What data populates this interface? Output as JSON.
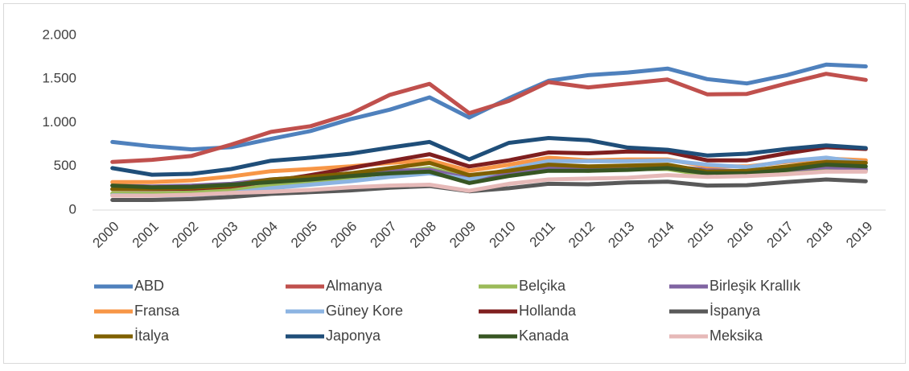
{
  "chart_data": {
    "type": "line",
    "categories": [
      "2000",
      "2001",
      "2002",
      "2003",
      "2004",
      "2005",
      "2006",
      "2007",
      "2008",
      "2009",
      "2010",
      "2011",
      "2012",
      "2013",
      "2014",
      "2015",
      "2016",
      "2017",
      "2018",
      "2019"
    ],
    "ylim": [
      0,
      2000
    ],
    "yticks": [
      0,
      500,
      {
        "value": 1000,
        "label": "1.000"
      },
      {
        "value": 1500,
        "label": "1.500"
      },
      {
        "value": 2000,
        "label": "2.000"
      }
    ],
    "grid": false,
    "series": [
      {
        "name": "ABD",
        "color": "#4f81bd",
        "values": [
          780,
          730,
          695,
          720,
          815,
          905,
          1040,
          1150,
          1290,
          1060,
          1280,
          1480,
          1545,
          1575,
          1620,
          1500,
          1450,
          1545,
          1665,
          1645
        ]
      },
      {
        "name": "Almanya",
        "color": "#c0504d",
        "values": [
          550,
          575,
          620,
          750,
          895,
          960,
          1100,
          1320,
          1445,
          1110,
          1250,
          1465,
          1405,
          1450,
          1495,
          1325,
          1330,
          1450,
          1560,
          1490
        ]
      },
      {
        "name": "Belçika",
        "color": "#9bbb59",
        "values": [
          190,
          190,
          200,
          230,
          280,
          320,
          370,
          430,
          480,
          370,
          410,
          470,
          450,
          470,
          470,
          400,
          400,
          430,
          470,
          450
        ]
      },
      {
        "name": "Birleşik Krallık",
        "color": "#8064a2",
        "values": [
          280,
          270,
          280,
          300,
          350,
          380,
          420,
          450,
          460,
          360,
          420,
          480,
          480,
          480,
          500,
          460,
          440,
          460,
          490,
          470
        ]
      },
      {
        "name": "Fransa",
        "color": "#f79646",
        "values": [
          320,
          320,
          340,
          385,
          445,
          470,
          500,
          540,
          570,
          450,
          520,
          600,
          570,
          580,
          580,
          500,
          500,
          550,
          590,
          570
        ]
      },
      {
        "name": "Güney Kore",
        "color": "#8cb4e2",
        "values": [
          170,
          165,
          170,
          195,
          250,
          290,
          330,
          380,
          420,
          350,
          470,
          560,
          560,
          560,
          570,
          520,
          490,
          560,
          600,
          540
        ]
      },
      {
        "name": "Hollanda",
        "color": "#7f1f1f",
        "values": [
          240,
          240,
          245,
          270,
          330,
          400,
          480,
          560,
          640,
          500,
          570,
          660,
          650,
          670,
          665,
          570,
          570,
          650,
          720,
          700
        ]
      },
      {
        "name": "İspanya",
        "color": "#595959",
        "values": [
          115,
          115,
          125,
          150,
          185,
          205,
          225,
          255,
          275,
          215,
          250,
          300,
          295,
          315,
          325,
          280,
          285,
          320,
          350,
          330
        ]
      },
      {
        "name": "İtalya",
        "color": "#7f6000",
        "values": [
          240,
          245,
          255,
          280,
          350,
          380,
          420,
          480,
          540,
          400,
          450,
          520,
          500,
          510,
          520,
          440,
          450,
          500,
          550,
          540
        ]
      },
      {
        "name": "Japonya",
        "color": "#1f4e79",
        "values": [
          480,
          405,
          415,
          470,
          565,
          600,
          645,
          715,
          780,
          580,
          770,
          825,
          800,
          715,
          690,
          625,
          645,
          700,
          740,
          710
        ]
      },
      {
        "name": "Kanada",
        "color": "#375623",
        "values": [
          280,
          260,
          265,
          290,
          320,
          350,
          390,
          420,
          440,
          310,
          390,
          450,
          450,
          460,
          480,
          420,
          420,
          460,
          520,
          500
        ]
      },
      {
        "name": "Meksika",
        "color": "#e6b9b8",
        "values": [
          165,
          165,
          175,
          195,
          210,
          230,
          260,
          280,
          290,
          220,
          300,
          350,
          360,
          370,
          400,
          380,
          390,
          410,
          440,
          440
        ]
      }
    ]
  }
}
